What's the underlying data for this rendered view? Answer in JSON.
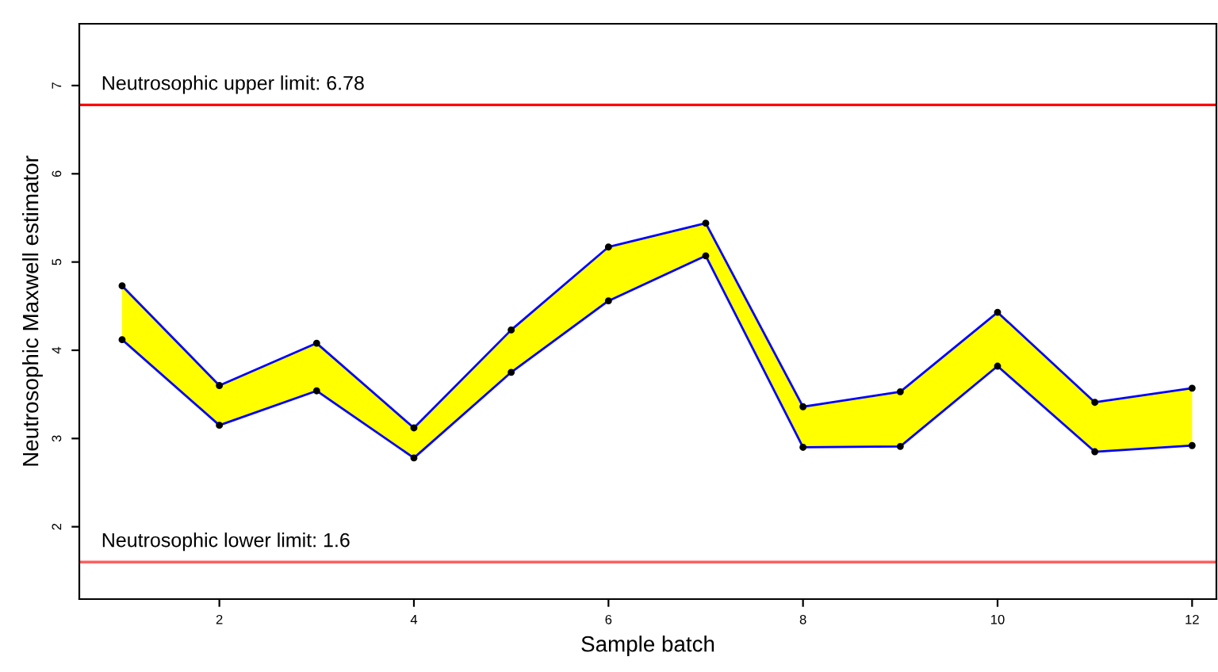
{
  "chart_data": {
    "type": "line",
    "xlabel": "Sample batch",
    "ylabel": "Neutrosophic Maxwell estimator",
    "x": [
      1,
      2,
      3,
      4,
      5,
      6,
      7,
      8,
      9,
      10,
      11,
      12
    ],
    "series": [
      {
        "color": "#0000ff",
        "values": [
          4.73,
          3.6,
          4.08,
          3.12,
          4.23,
          5.17,
          5.44,
          3.36,
          3.53,
          4.43,
          3.41,
          3.57
        ],
        "lower": [
          4.12,
          3.15,
          3.54,
          2.78,
          3.75,
          4.56,
          5.07,
          2.9,
          2.91,
          3.82,
          2.85,
          2.92
        ],
        "upper": [
          4.73,
          3.6,
          4.08,
          3.12,
          4.23,
          5.17,
          5.44,
          3.36,
          3.53,
          4.43,
          3.41,
          3.57
        ]
      },
      {
        "color": "#0000ff",
        "values": [
          4.12,
          3.15,
          3.54,
          2.78,
          3.75,
          4.56,
          5.07,
          2.9,
          2.91,
          3.82,
          2.85,
          2.92
        ]
      }
    ],
    "marker": "circle",
    "xlim": [
      0.56,
      12.25
    ],
    "ylim": [
      1.18,
      7.7
    ],
    "xticks": [
      2,
      4,
      6,
      8,
      10,
      12
    ],
    "yticks": [
      2,
      3,
      4,
      5,
      6,
      7
    ],
    "grid": false,
    "ref_lines": [
      {
        "axis": "y",
        "value": 6.78,
        "label": "Neutrosophic upper limit: 6.78",
        "color": "#ff0000"
      },
      {
        "axis": "y",
        "value": 1.6,
        "label": "Neutrosophic lower limit: 1.6",
        "color": "#ff6060"
      }
    ]
  }
}
